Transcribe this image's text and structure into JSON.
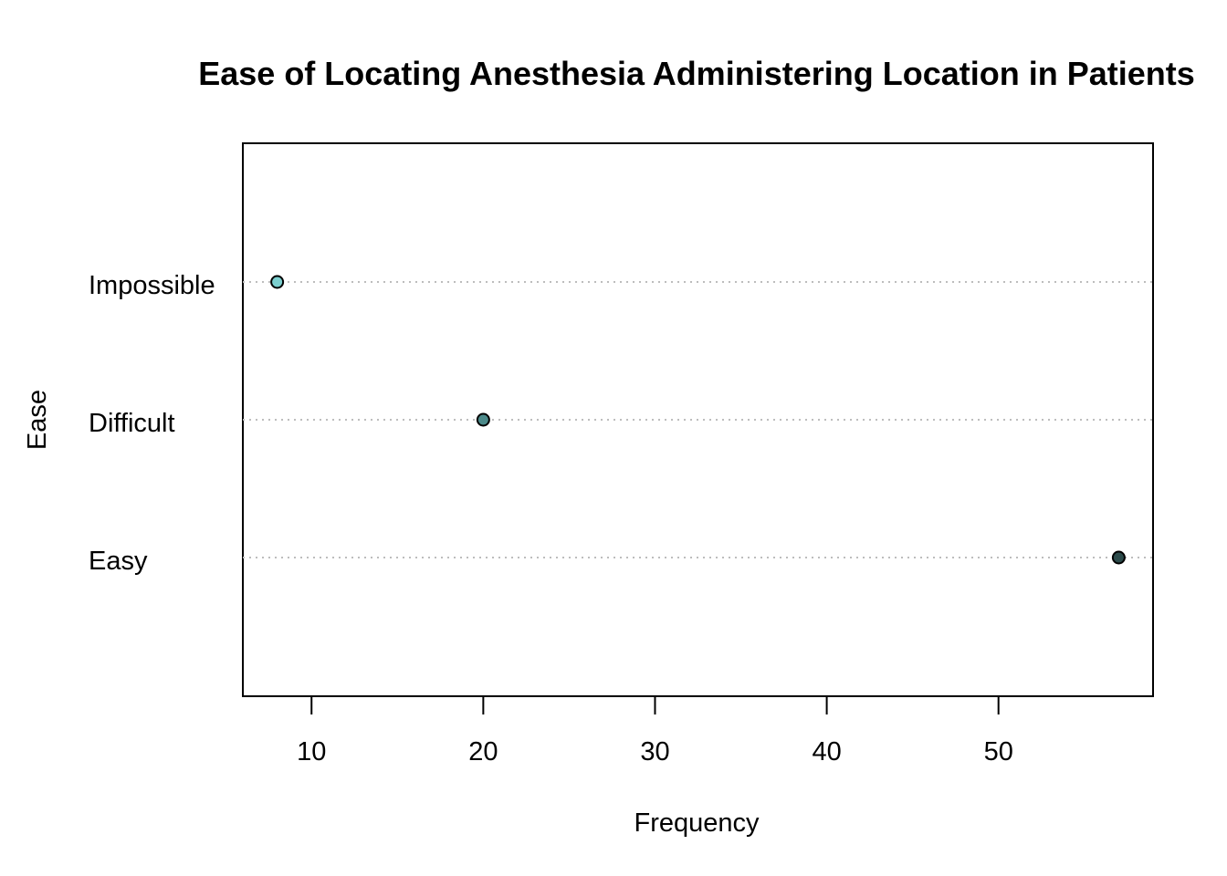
{
  "chart_data": {
    "type": "scatter",
    "subtype": "dot-plot",
    "title": "Ease of Locating Anesthesia Administering Location in Patients",
    "xlabel": "Frequency",
    "ylabel": "Ease",
    "xlim": [
      6,
      59
    ],
    "xticks": [
      10,
      20,
      30,
      40,
      50
    ],
    "categories": [
      "Impossible",
      "Difficult",
      "Easy"
    ],
    "values": [
      8,
      20,
      57
    ],
    "point_colors": [
      "#7ccfcf",
      "#4c8a8a",
      "#2b4a4a"
    ],
    "grid": "dotted horizontal guide lines",
    "legend": "none"
  }
}
